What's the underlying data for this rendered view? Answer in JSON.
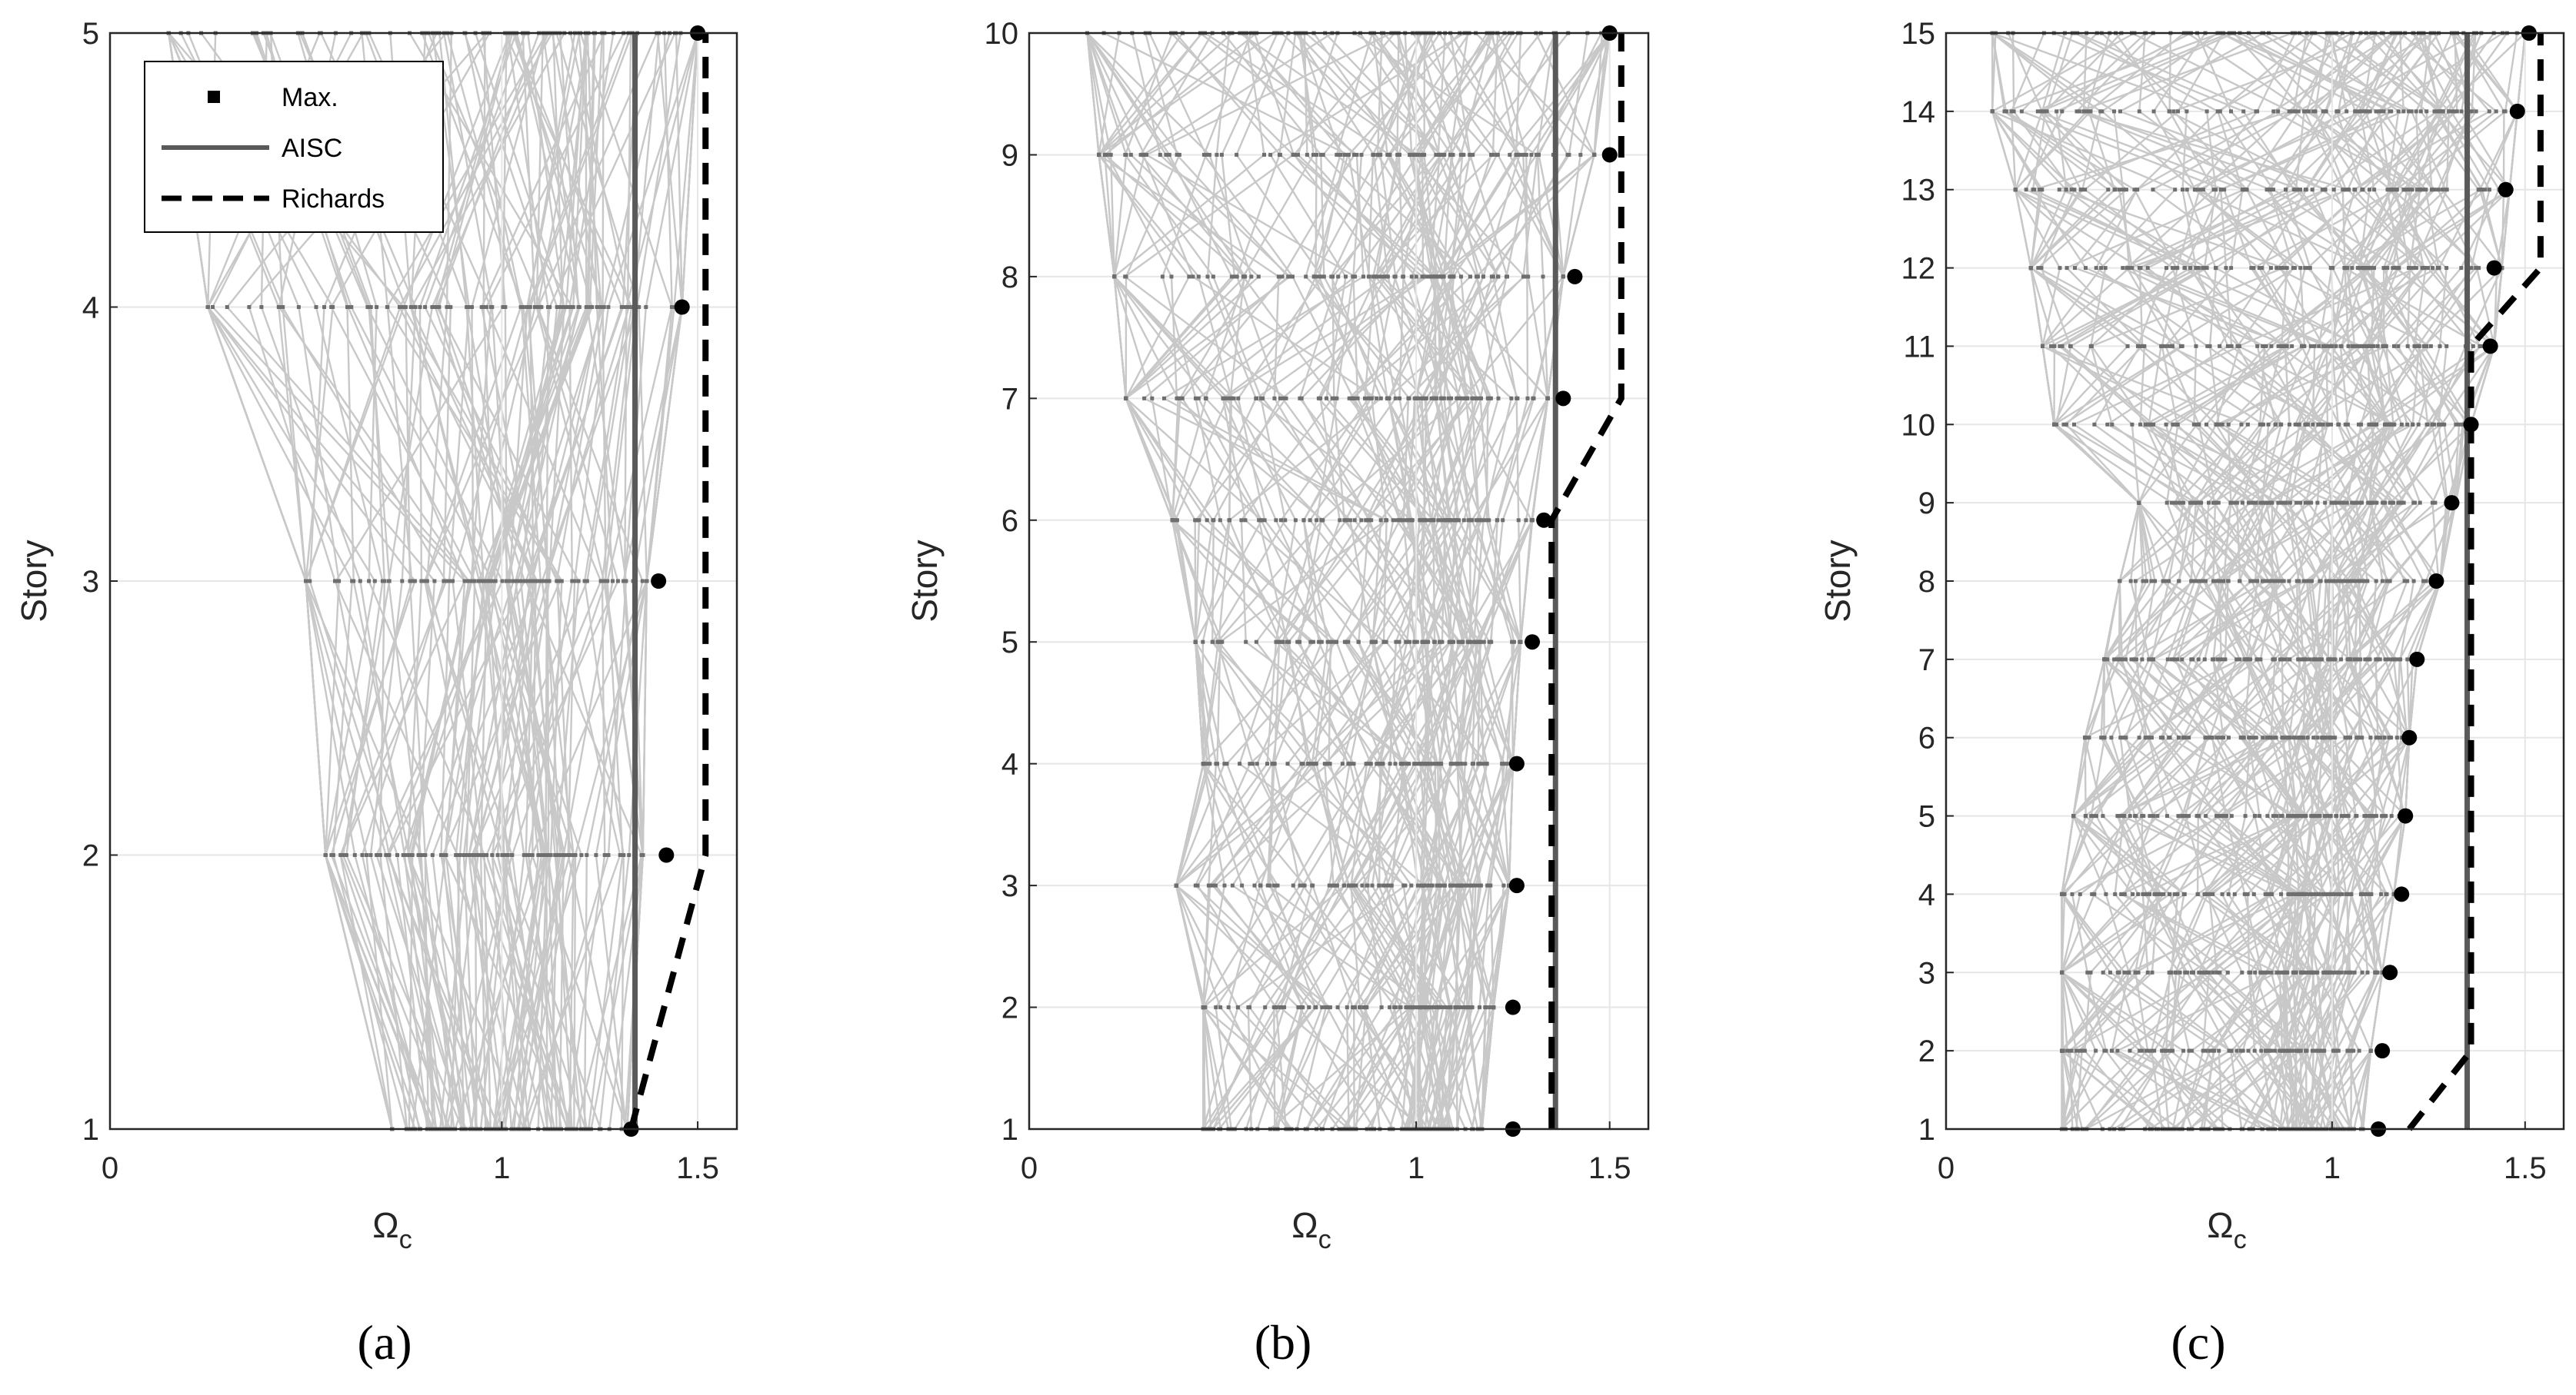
{
  "colors": {
    "background": "#ffffff",
    "simulations": "#c8c8c8",
    "dots": "#6e6e6e",
    "aisc": "#5a5a5a",
    "richards": "#000000",
    "max": "#000000",
    "grid": "#e6e6e6",
    "axis": "#262626"
  },
  "chart_data": [
    {
      "type": "line",
      "panel_label": "(a)",
      "xlabel": "Ω",
      "xlabel_sub": "c",
      "ylabel": "Story",
      "xlim": [
        0,
        1.6
      ],
      "ylim": [
        1,
        5
      ],
      "x_ticks": [
        0,
        1,
        1.5
      ],
      "x_tick_labels": [
        "0",
        "1",
        "1.5"
      ],
      "y_ticks": [
        1,
        2,
        3,
        4,
        5
      ],
      "y_tick_labels": [
        "1",
        "2",
        "3",
        "4",
        "5"
      ],
      "grid": true,
      "legend": {
        "position": "top-left",
        "entries": [
          {
            "label": "Max.",
            "series": "Max."
          },
          {
            "label": "AISC",
            "series": "AISC"
          },
          {
            "label": "Richards",
            "series": "Richards"
          }
        ]
      },
      "simulations": {
        "color": "gray",
        "count": 120,
        "min": [
          0.72,
          0.55,
          0.5,
          0.25,
          0.15
        ],
        "max": [
          1.32,
          1.36,
          1.37,
          1.46,
          1.5
        ],
        "center": [
          1.0,
          0.96,
          1.0,
          1.02,
          1.02
        ]
      },
      "series": [
        {
          "name": "Max.",
          "style": "markers",
          "x": [
            1.33,
            1.42,
            1.4,
            1.46,
            1.5
          ],
          "y": [
            1,
            2,
            3,
            4,
            5
          ]
        },
        {
          "name": "AISC",
          "style": "solid",
          "x": [
            1.34,
            1.34
          ],
          "y": [
            1,
            5
          ]
        },
        {
          "name": "Richards",
          "style": "dashed",
          "x": [
            1.33,
            1.52,
            1.52
          ],
          "y": [
            1,
            2,
            5
          ]
        }
      ]
    },
    {
      "type": "line",
      "panel_label": "(b)",
      "xlabel": "Ω",
      "xlabel_sub": "c",
      "ylabel": "Story",
      "xlim": [
        0,
        1.6
      ],
      "ylim": [
        1,
        10
      ],
      "x_ticks": [
        0,
        1,
        1.5
      ],
      "x_tick_labels": [
        "0",
        "1",
        "1.5"
      ],
      "y_ticks": [
        1,
        2,
        3,
        4,
        5,
        6,
        7,
        8,
        9,
        10
      ],
      "y_tick_labels": [
        "1",
        "2",
        "3",
        "4",
        "5",
        "6",
        "7",
        "8",
        "9",
        "10"
      ],
      "grid": true,
      "simulations": {
        "color": "gray",
        "count": 120,
        "min": [
          0.45,
          0.45,
          0.38,
          0.45,
          0.43,
          0.37,
          0.25,
          0.22,
          0.18,
          0.15
        ],
        "max": [
          1.17,
          1.2,
          1.24,
          1.25,
          1.27,
          1.3,
          1.34,
          1.38,
          1.46,
          1.5
        ],
        "center": [
          0.98,
          0.98,
          0.97,
          0.97,
          0.98,
          1.0,
          0.98,
          0.96,
          0.96,
          0.94
        ]
      },
      "series": [
        {
          "name": "Max.",
          "style": "markers",
          "x": [
            1.25,
            1.25,
            1.26,
            1.26,
            1.3,
            1.33,
            1.38,
            1.41,
            1.5,
            1.5
          ],
          "y": [
            1,
            2,
            3,
            4,
            5,
            6,
            7,
            8,
            9,
            10
          ]
        },
        {
          "name": "AISC",
          "style": "solid",
          "x": [
            1.36,
            1.36
          ],
          "y": [
            1,
            10
          ]
        },
        {
          "name": "Richards",
          "style": "dashed",
          "x": [
            1.35,
            1.35,
            1.53,
            1.53
          ],
          "y": [
            1,
            6,
            7,
            10
          ]
        }
      ]
    },
    {
      "type": "line",
      "panel_label": "(c)",
      "xlabel": "Ω",
      "xlabel_sub": "c",
      "ylabel": "Story",
      "xlim": [
        0,
        1.6
      ],
      "ylim": [
        1,
        15
      ],
      "x_ticks": [
        0,
        1,
        1.5
      ],
      "x_tick_labels": [
        "0",
        "1",
        "1.5"
      ],
      "y_ticks": [
        1,
        2,
        3,
        4,
        5,
        6,
        7,
        8,
        9,
        10,
        11,
        12,
        13,
        14,
        15
      ],
      "y_tick_labels": [
        "1",
        "2",
        "3",
        "4",
        "5",
        "6",
        "7",
        "8",
        "9",
        "10",
        "11",
        "12",
        "13",
        "14",
        "15"
      ],
      "grid": true,
      "simulations": {
        "color": "gray",
        "count": 120,
        "min": [
          0.3,
          0.3,
          0.3,
          0.3,
          0.33,
          0.36,
          0.41,
          0.45,
          0.5,
          0.28,
          0.25,
          0.22,
          0.18,
          0.12,
          0.12
        ],
        "max": [
          1.08,
          1.1,
          1.13,
          1.16,
          1.19,
          1.2,
          1.22,
          1.28,
          1.32,
          1.36,
          1.42,
          1.44,
          1.46,
          1.48,
          1.5
        ],
        "center": [
          0.85,
          0.86,
          0.87,
          0.88,
          0.89,
          0.9,
          0.91,
          0.93,
          0.95,
          0.97,
          0.99,
          1.0,
          1.0,
          1.0,
          1.0
        ]
      },
      "series": [
        {
          "name": "Max.",
          "style": "markers",
          "x": [
            1.12,
            1.13,
            1.15,
            1.18,
            1.19,
            1.2,
            1.22,
            1.27,
            1.31,
            1.36,
            1.41,
            1.42,
            1.45,
            1.48,
            1.51
          ],
          "y": [
            1,
            2,
            3,
            4,
            5,
            6,
            7,
            8,
            9,
            10,
            11,
            12,
            13,
            14,
            15
          ]
        },
        {
          "name": "AISC",
          "style": "solid",
          "x": [
            1.35,
            1.35
          ],
          "y": [
            1,
            15
          ]
        },
        {
          "name": "Richards",
          "style": "dashed",
          "x": [
            1.2,
            1.36,
            1.36,
            1.54,
            1.54
          ],
          "y": [
            1,
            2,
            11,
            12,
            15
          ]
        }
      ]
    }
  ]
}
